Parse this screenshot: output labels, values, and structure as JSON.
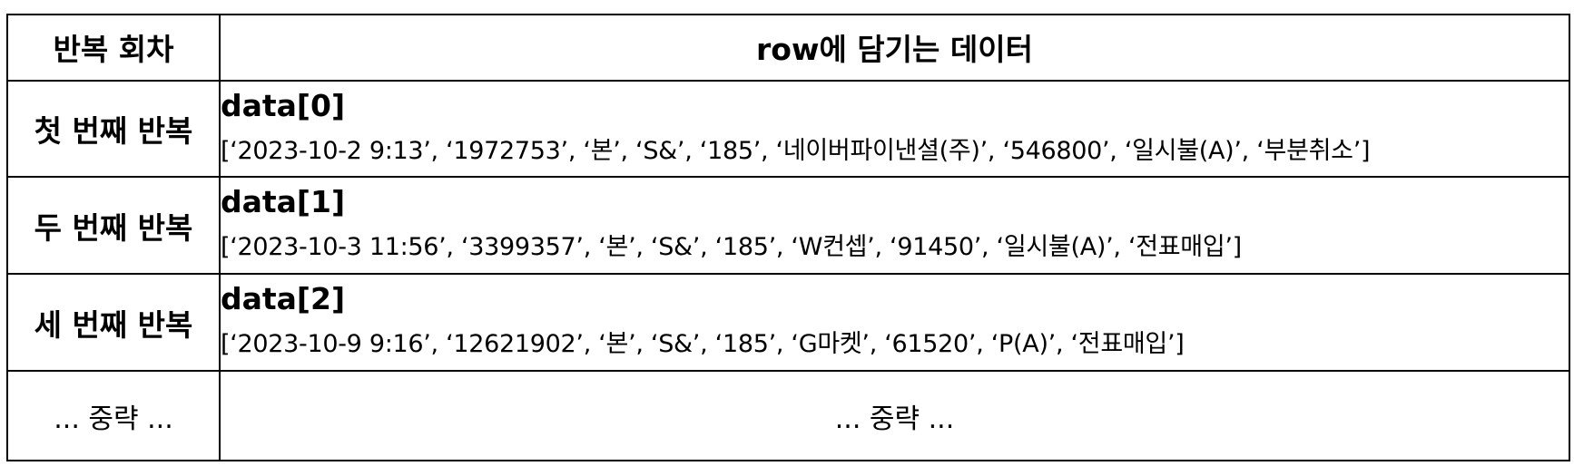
{
  "table": {
    "headers": [
      "반복 회차",
      "row에 담기는 데이터"
    ],
    "rows": [
      {
        "round": "첫 번째 반복",
        "label": "data[0]",
        "values": "[‘2023-10-2 9:13’, ‘1972753’, ‘본’, ‘S&’, ‘185’, ‘네이버파이낸셜(주)’, ‘546800’, ‘일시불(A)’, ‘부분취소’]"
      },
      {
        "round": "두 번째 반복",
        "label": "data[1]",
        "values": "[‘2023-10-3 11:56’, ‘3399357’, ‘본’, ‘S&’, ‘185’, ‘W컨셉’, ‘91450’, ‘일시불(A)’, ‘전표매입’]"
      },
      {
        "round": "세 번째 반복",
        "label": "data[2]",
        "values": "[‘2023-10-9 9:16’, ‘12621902’, ‘본’, ‘S&’, ‘185’, ‘G마켓’, ‘61520’, ‘P(A)’, ‘전표매입’]"
      }
    ],
    "omitted": {
      "round": "... 중략 ...",
      "content": "... 중략 ..."
    }
  }
}
